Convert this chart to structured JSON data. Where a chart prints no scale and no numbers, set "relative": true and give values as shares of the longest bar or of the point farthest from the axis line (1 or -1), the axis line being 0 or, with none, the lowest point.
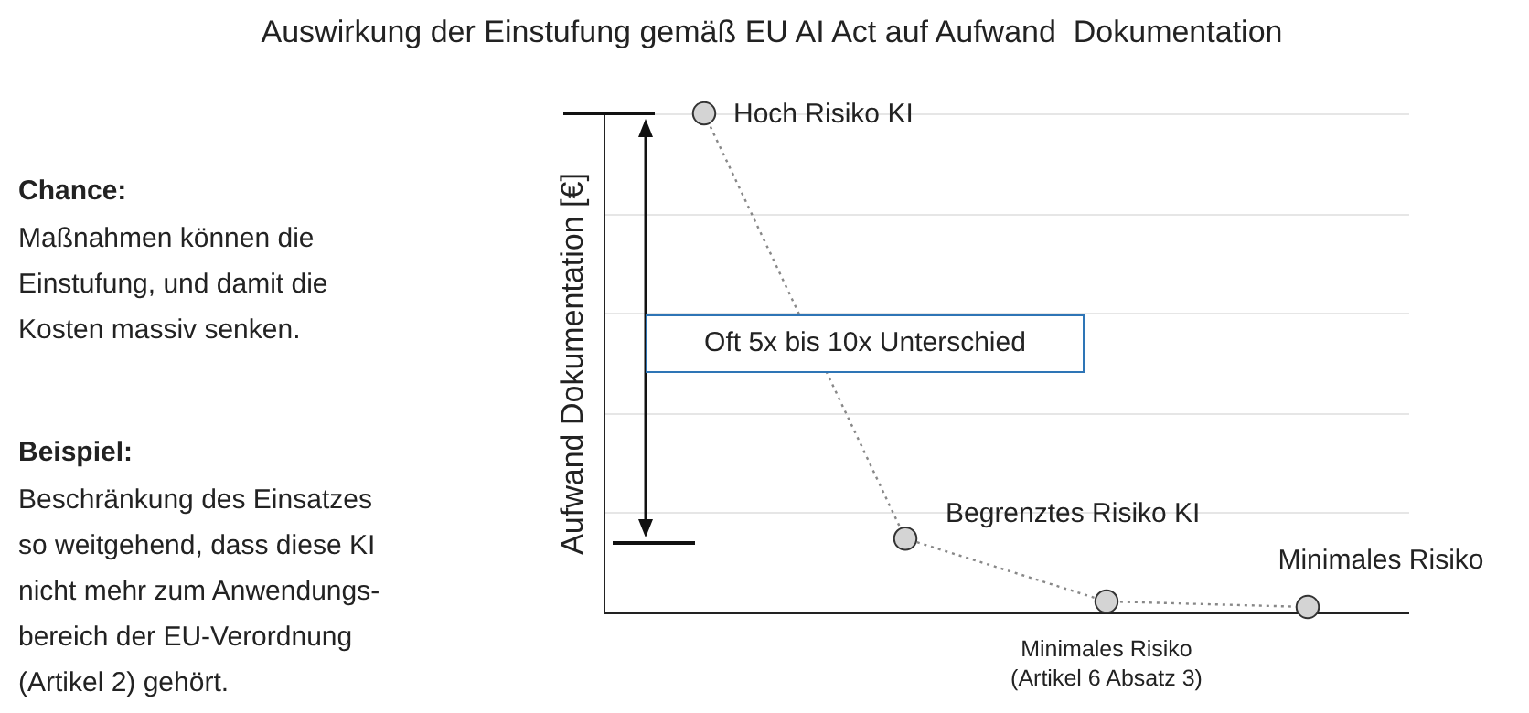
{
  "chart_data": {
    "type": "line",
    "title": "Auswirkung der Einstufung gemäß EU AI Act auf Aufwand  Dokumentation",
    "ylabel": "Aufwand Dokumentation [€]",
    "relative": true,
    "grid": "y",
    "marker": "circle",
    "line_style": "dotted",
    "categories": [
      null,
      null,
      null,
      null
    ],
    "series": [
      {
        "color": "#888888",
        "values": [
          1,
          0.148,
          0.022,
          0.011
        ]
      }
    ],
    "annotations": [
      "Hoch Risiko KI",
      "Begrenztes Risiko KI",
      "Minimales Risiko\n(Artikel 6 Absatz 3)",
      "Minimales Risiko",
      "Chance:",
      "Maßnahmen können die\nEinstufung, und damit die\nKosten massiv senken.",
      "Beispiel:",
      "Beschränkung des Einsatzes\nso weitgehend, dass diese KI\nnicht mehr  zum Anwendungs-\nbereich der EU-Verordnung\n(Artikel 2) gehört.",
      "Oft 5x bis 10x Unterschied"
    ]
  }
}
